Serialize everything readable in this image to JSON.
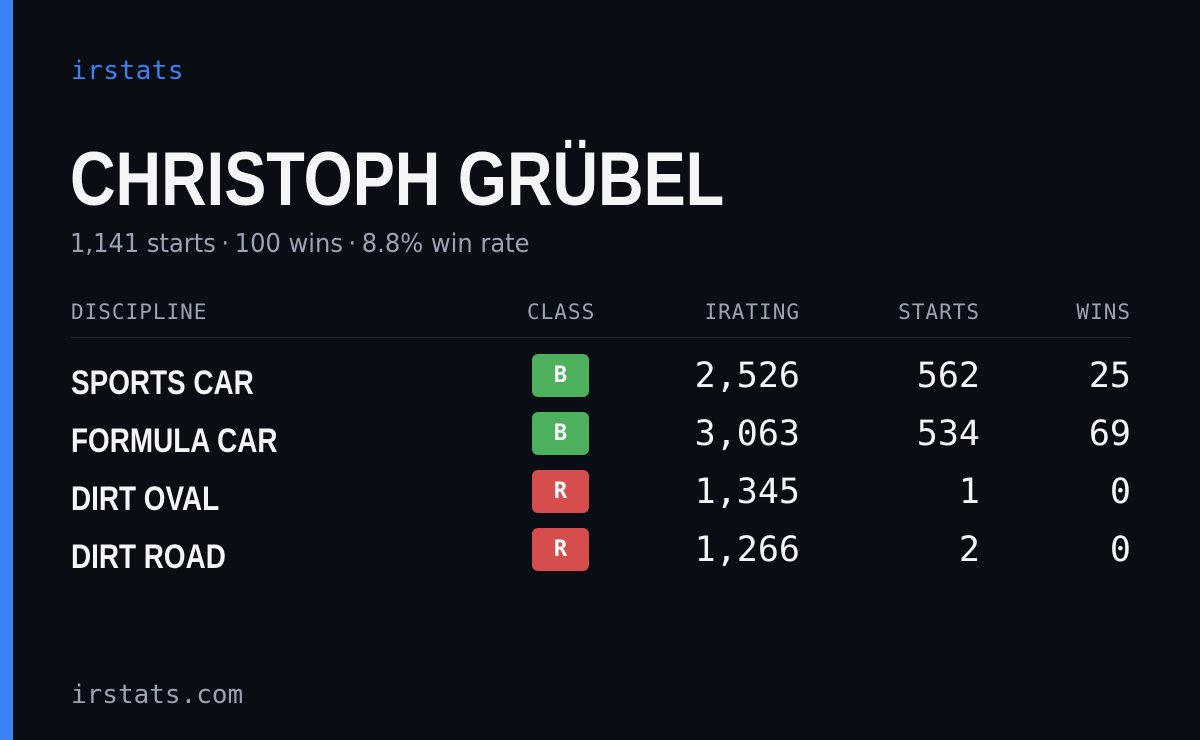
{
  "brand": "irstats",
  "driver": {
    "name": "CHRISTOPH GRÜBEL",
    "starts_text": "1,141 starts",
    "wins_text": "100 wins",
    "win_rate_text": "8.8% win rate",
    "separator": "·"
  },
  "table": {
    "headers": {
      "discipline": "DISCIPLINE",
      "class": "CLASS",
      "irating": "IRATING",
      "starts": "STARTS",
      "wins": "WINS"
    },
    "rows": [
      {
        "discipline": "SPORTS CAR",
        "class": "B",
        "class_color": "#4cb05c",
        "irating": "2,526",
        "starts": "562",
        "wins": "25"
      },
      {
        "discipline": "FORMULA CAR",
        "class": "B",
        "class_color": "#4cb05c",
        "irating": "3,063",
        "starts": "534",
        "wins": "69"
      },
      {
        "discipline": "DIRT OVAL",
        "class": "R",
        "class_color": "#d64d4d",
        "irating": "1,345",
        "starts": "1",
        "wins": "0"
      },
      {
        "discipline": "DIRT ROAD",
        "class": "R",
        "class_color": "#d64d4d",
        "irating": "1,266",
        "starts": "2",
        "wins": "0"
      }
    ]
  },
  "footer": "irstats.com",
  "colors": {
    "accent": "#3b82f6",
    "background": "#0b0d14",
    "text_primary": "#f4f5f7",
    "text_muted": "#9aa3b2"
  }
}
